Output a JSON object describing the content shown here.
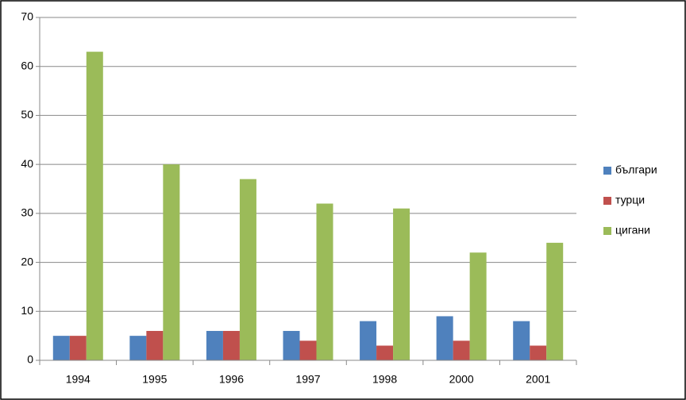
{
  "chart_data": {
    "type": "bar",
    "categories": [
      "1994",
      "1995",
      "1996",
      "1997",
      "1998",
      "2000",
      "2001"
    ],
    "series": [
      {
        "name": "българи",
        "color": "#4f81bd",
        "values": [
          5,
          5,
          6,
          6,
          8,
          9,
          8
        ]
      },
      {
        "name": "турци",
        "color": "#c0504d",
        "values": [
          5,
          6,
          6,
          4,
          3,
          4,
          3
        ]
      },
      {
        "name": "цигани",
        "color": "#9bbb59",
        "values": [
          63,
          40,
          37,
          32,
          31,
          22,
          24
        ]
      }
    ],
    "ylim": [
      0,
      70
    ],
    "yticks": [
      0,
      10,
      20,
      30,
      40,
      50,
      60,
      70
    ],
    "grid": true,
    "legend": "right"
  }
}
